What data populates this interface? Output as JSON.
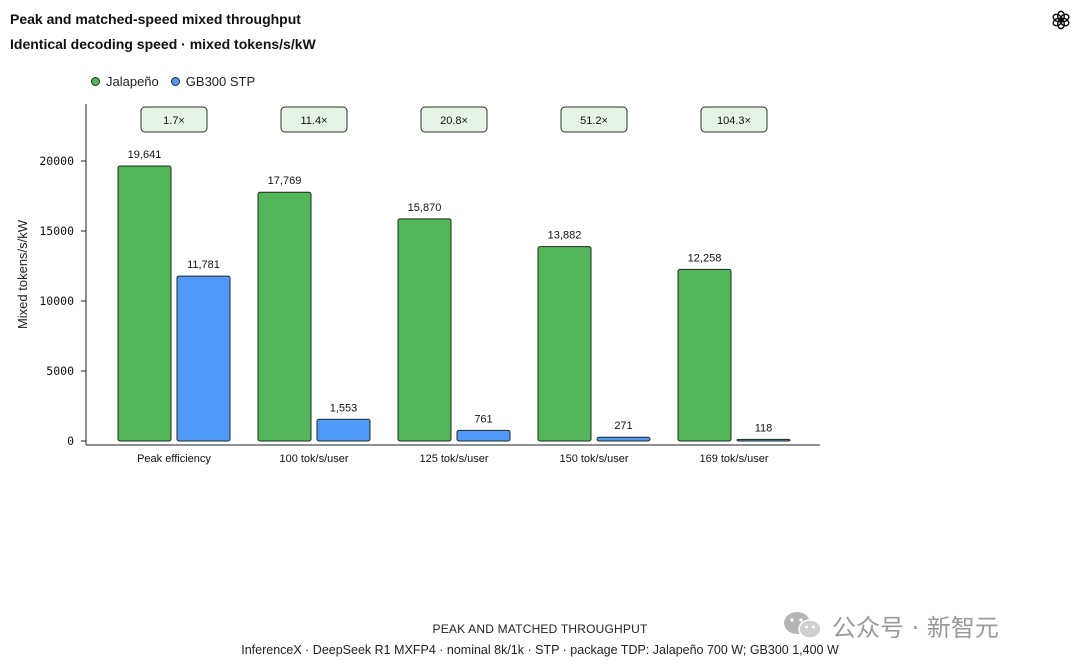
{
  "header": {
    "title": "Peak and matched-speed mixed throughput",
    "subtitle": "Identical decoding speed · mixed tokens/s/kW"
  },
  "logo": {
    "icon": "openai-logo-icon"
  },
  "colors": {
    "jalapeno": "#52b55a",
    "gb300": "#5199f7",
    "ratio_box_fill": "#e6f4e6",
    "axis": "#222222"
  },
  "chart_data": {
    "type": "bar",
    "ylabel": "Mixed tokens/s/kW",
    "xlabel": "",
    "ylim": [
      0,
      24000
    ],
    "yticks": [
      0,
      5000,
      10000,
      15000,
      20000
    ],
    "grid": false,
    "legend_position": "top-left",
    "categories": [
      "Peak efficiency",
      "100 tok/s/user",
      "125 tok/s/user",
      "150 tok/s/user",
      "169 tok/s/user"
    ],
    "series": [
      {
        "name": "Jalapeño",
        "values": [
          19641,
          17769,
          15870,
          13882,
          12258
        ],
        "labels": [
          "19,641",
          "17,769",
          "15,870",
          "13,882",
          "12,258"
        ]
      },
      {
        "name": "GB300 STP",
        "values": [
          11781,
          1553,
          761,
          271,
          118
        ],
        "labels": [
          "11,781",
          "1,553",
          "761",
          "271",
          "118"
        ]
      }
    ],
    "ratios": [
      "1.7×",
      "11.4×",
      "20.8×",
      "51.2×",
      "104.3×"
    ]
  },
  "caption": {
    "title": "PEAK AND MATCHED THROUGHPUT",
    "subtitle": "InferenceX · DeepSeek R1 MXFP4 · nominal 8k/1k · STP · package TDP: Jalapeño 700 W; GB300 1,400 W"
  },
  "watermark": {
    "icon": "wechat-icon",
    "text": "公众号 · 新智元"
  }
}
